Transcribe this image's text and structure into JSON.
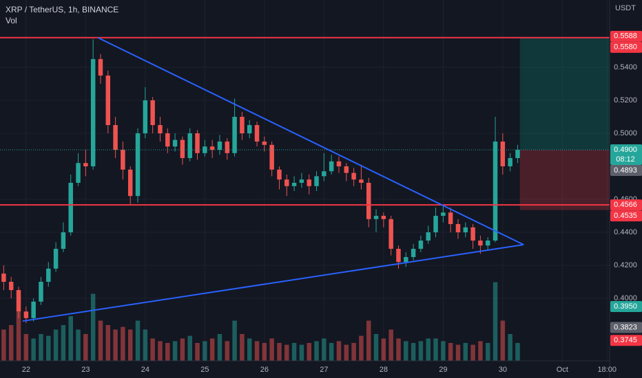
{
  "chart_data": {
    "type": "candlestick",
    "title": "XRP / TetherUS, 1h, BINANCE",
    "volume_label": "Vol",
    "currency": "USDT",
    "up_color": "#26a69a",
    "down_color": "#ef5350",
    "open": [
      0.415,
      0.41,
      0.405,
      0.392,
      0.388,
      0.398,
      0.41,
      0.418,
      0.43,
      0.44,
      0.47,
      0.482,
      0.48,
      0.545,
      0.535,
      0.505,
      0.49,
      0.478,
      0.462,
      0.5,
      0.52,
      0.505,
      0.5,
      0.492,
      0.496,
      0.485,
      0.5,
      0.488,
      0.492,
      0.49,
      0.495,
      0.488,
      0.51,
      0.5,
      0.505,
      0.495,
      0.493,
      0.478,
      0.472,
      0.468,
      0.47,
      0.472,
      0.468,
      0.474,
      0.477,
      0.483,
      0.48,
      0.476,
      0.472,
      0.47,
      0.448,
      0.45,
      0.448,
      0.43,
      0.422,
      0.425,
      0.43,
      0.435,
      0.44,
      0.45,
      0.452,
      0.445,
      0.44,
      0.443,
      0.435,
      0.432,
      0.435,
      0.495,
      0.48,
      0.485
    ],
    "high": [
      0.42,
      0.413,
      0.407,
      0.395,
      0.4,
      0.413,
      0.422,
      0.434,
      0.446,
      0.475,
      0.488,
      0.49,
      0.557,
      0.548,
      0.538,
      0.51,
      0.495,
      0.48,
      0.503,
      0.528,
      0.522,
      0.51,
      0.503,
      0.5,
      0.498,
      0.503,
      0.502,
      0.496,
      0.496,
      0.499,
      0.497,
      0.521,
      0.513,
      0.508,
      0.507,
      0.498,
      0.495,
      0.48,
      0.475,
      0.474,
      0.476,
      0.475,
      0.477,
      0.488,
      0.487,
      0.486,
      0.482,
      0.479,
      0.481,
      0.473,
      0.454,
      0.452,
      0.45,
      0.432,
      0.428,
      0.433,
      0.438,
      0.444,
      0.455,
      0.456,
      0.455,
      0.448,
      0.446,
      0.445,
      0.438,
      0.437,
      0.51,
      0.5,
      0.488,
      0.493
    ],
    "low": [
      0.405,
      0.4,
      0.388,
      0.385,
      0.386,
      0.396,
      0.407,
      0.416,
      0.428,
      0.438,
      0.468,
      0.474,
      0.478,
      0.53,
      0.5,
      0.485,
      0.472,
      0.457,
      0.458,
      0.497,
      0.5,
      0.495,
      0.488,
      0.489,
      0.481,
      0.483,
      0.484,
      0.486,
      0.485,
      0.487,
      0.484,
      0.486,
      0.496,
      0.497,
      0.492,
      0.489,
      0.474,
      0.466,
      0.462,
      0.465,
      0.467,
      0.463,
      0.465,
      0.471,
      0.475,
      0.476,
      0.471,
      0.468,
      0.466,
      0.443,
      0.44,
      0.443,
      0.426,
      0.418,
      0.419,
      0.423,
      0.428,
      0.433,
      0.437,
      0.446,
      0.44,
      0.436,
      0.437,
      0.43,
      0.427,
      0.429,
      0.434,
      0.475,
      0.477,
      0.482
    ],
    "close": [
      0.41,
      0.405,
      0.392,
      0.388,
      0.398,
      0.41,
      0.418,
      0.43,
      0.44,
      0.47,
      0.482,
      0.48,
      0.545,
      0.535,
      0.505,
      0.49,
      0.478,
      0.462,
      0.5,
      0.52,
      0.505,
      0.5,
      0.492,
      0.496,
      0.485,
      0.5,
      0.488,
      0.492,
      0.49,
      0.495,
      0.488,
      0.51,
      0.5,
      0.505,
      0.495,
      0.493,
      0.478,
      0.472,
      0.468,
      0.47,
      0.472,
      0.468,
      0.474,
      0.477,
      0.483,
      0.48,
      0.476,
      0.472,
      0.47,
      0.448,
      0.45,
      0.448,
      0.43,
      0.422,
      0.425,
      0.43,
      0.435,
      0.44,
      0.45,
      0.452,
      0.445,
      0.44,
      0.443,
      0.435,
      0.432,
      0.435,
      0.495,
      0.48,
      0.485,
      0.49
    ],
    "volume": [
      35,
      40,
      55,
      30,
      25,
      30,
      28,
      35,
      40,
      50,
      35,
      30,
      75,
      45,
      40,
      35,
      38,
      35,
      45,
      35,
      25,
      22,
      20,
      22,
      25,
      28,
      20,
      22,
      25,
      30,
      22,
      45,
      30,
      25,
      22,
      20,
      25,
      20,
      18,
      20,
      18,
      20,
      22,
      25,
      20,
      22,
      18,
      20,
      28,
      45,
      30,
      25,
      35,
      25,
      22,
      20,
      22,
      25,
      25,
      22,
      20,
      18,
      20,
      18,
      22,
      20,
      88,
      45,
      30,
      20
    ],
    "vlim": [
      0,
      100
    ],
    "xlim": [
      -0.5,
      81.35
    ],
    "ylim": [
      0.3642,
      0.5808
    ],
    "xticks": [
      {
        "value": 3,
        "label": "22"
      },
      {
        "value": 11,
        "label": "23"
      },
      {
        "value": 19,
        "label": "24"
      },
      {
        "value": 27,
        "label": "25"
      },
      {
        "value": 35,
        "label": "26"
      },
      {
        "value": 43,
        "label": "27"
      },
      {
        "value": 51,
        "label": "28"
      },
      {
        "value": 59,
        "label": "29"
      },
      {
        "value": 67,
        "label": "30"
      },
      {
        "value": 75,
        "label": "Oct"
      },
      {
        "value": 81,
        "label": "18:00"
      }
    ],
    "yticks": [
      {
        "value": 0.54,
        "label": "0.5400"
      },
      {
        "value": 0.52,
        "label": "0.5200"
      },
      {
        "value": 0.5,
        "label": "0.5000"
      },
      {
        "value": 0.46,
        "label": "0.4600"
      },
      {
        "value": 0.44,
        "label": "0.4400"
      },
      {
        "value": 0.42,
        "label": "0.4200"
      },
      {
        "value": 0.4,
        "label": "0.4000"
      }
    ],
    "grid": true,
    "hlines": [
      {
        "value": 0.558,
        "color": "#f23645"
      },
      {
        "value": 0.4566,
        "color": "#f23645"
      }
    ],
    "trendlines": [
      {
        "color": "#2962ff",
        "x": [
          12.63,
          69.8
        ],
        "y": [
          0.558,
          0.4325
        ]
      },
      {
        "color": "#2962ff",
        "x": [
          2.54,
          69.8
        ],
        "y": [
          0.3862,
          0.4325
        ]
      }
    ],
    "position": {
      "start": 69.3,
      "entry": 0.49,
      "target": 0.558,
      "stop": 0.4535
    },
    "price_labels": [
      {
        "value": 0.5588,
        "label": "0.5588",
        "color": "#f23645"
      },
      {
        "value": 0.558,
        "label": "0.5580",
        "color": "#f23645"
      },
      {
        "value": 0.49,
        "label": "0.4900",
        "color": "#26a69a",
        "sub": "08:12"
      },
      {
        "value": 0.4893,
        "label": "0.4893",
        "color": "#5d606b"
      },
      {
        "value": 0.4566,
        "label": "0.4566",
        "color": "#f23645"
      },
      {
        "value": 0.4535,
        "label": "0.4535",
        "color": "#f23645"
      },
      {
        "value": 0.395,
        "label": "0.3950",
        "color": "#26a69a"
      },
      {
        "value": 0.3823,
        "label": "0.3823",
        "color": "#5d606b"
      },
      {
        "value": 0.3745,
        "label": "0.3745",
        "color": "#f23645"
      }
    ]
  }
}
